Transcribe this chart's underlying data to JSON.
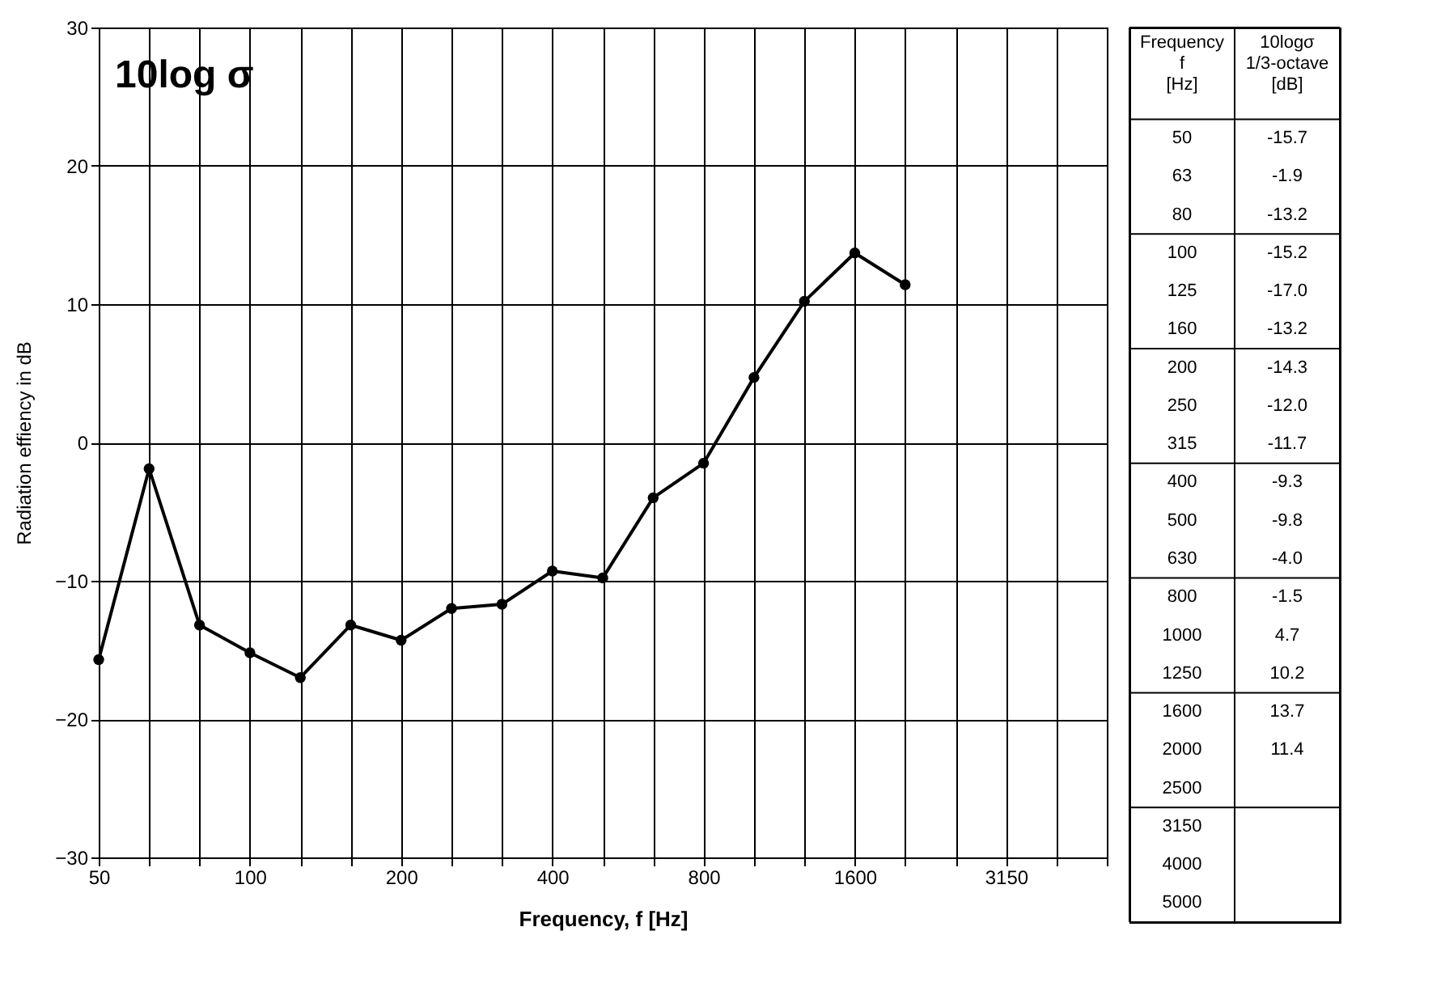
{
  "chart_data": [
    {
      "type": "line",
      "xlabel": "Frequency, f [Hz]",
      "ylabel": "Radiation effiency in dB",
      "categories": [
        "50",
        null,
        null,
        "100",
        null,
        null,
        "200",
        null,
        null,
        "400",
        null,
        null,
        "800",
        null,
        null,
        "1600",
        null,
        null,
        "3150",
        null,
        null
      ],
      "series": [
        {
          "color": "#000000",
          "values": [
            -15.7,
            -1.9,
            -13.2,
            -15.2,
            -17.0,
            -13.2,
            -14.3,
            -12.0,
            -11.7,
            -9.3,
            -9.8,
            -4.0,
            -1.5,
            4.7,
            10.2,
            13.7,
            11.4,
            null,
            null,
            null,
            null
          ]
        }
      ],
      "ylim": [
        -30,
        30
      ],
      "yticks": [
        -30,
        -20,
        -10,
        0,
        10,
        20,
        30
      ],
      "grid": true,
      "marker": "circle",
      "annotations": [
        "10log σ"
      ]
    },
    {
      "type": "other",
      "annotations": [
        "Frequency f [Hz]",
        "10logσ 1/3-octave [dB]"
      ],
      "categories": [
        "50",
        "63",
        "80",
        "100",
        "125",
        "160",
        "200",
        "250",
        "315",
        "400",
        "500",
        "630",
        "800",
        "1000",
        "1250",
        "1600",
        "2000",
        "2500",
        "3150",
        "4000",
        "5000"
      ],
      "value_labels": [
        "-15.7",
        "-1.9",
        "-13.2",
        "-15.2",
        "-17.0",
        "-13.2",
        "-14.3",
        "-12.0",
        "-11.7",
        "-9.3",
        "-9.8",
        "-4.0",
        "-1.5",
        "4.7",
        "10.2",
        "13.7",
        "11.4",
        null,
        null,
        null,
        null
      ]
    }
  ]
}
